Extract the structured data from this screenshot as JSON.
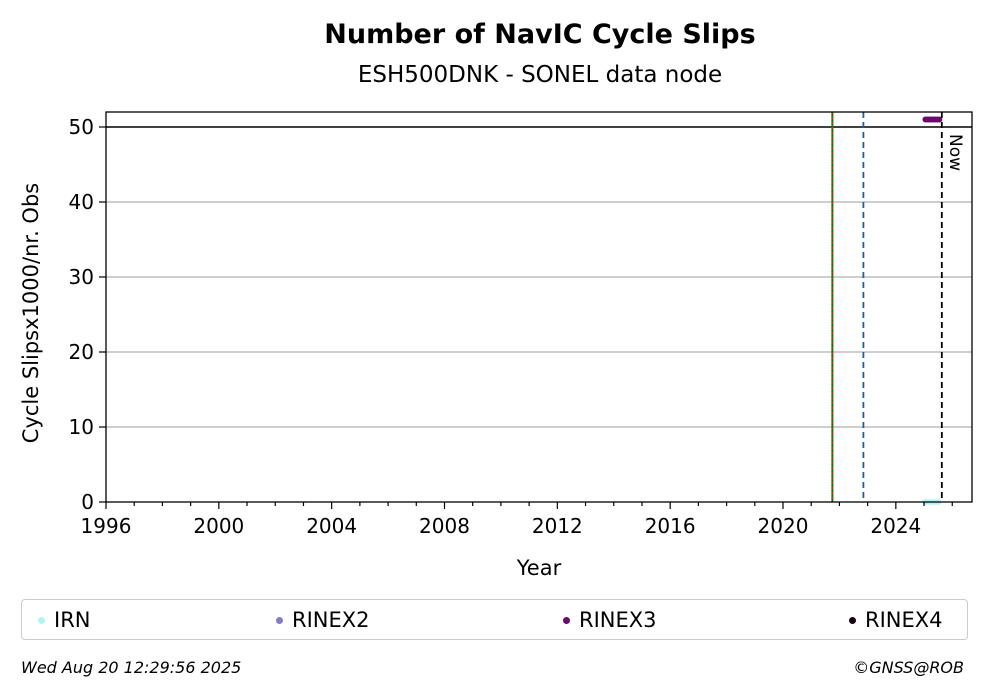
{
  "chart_data": {
    "type": "scatter",
    "title": "Number of NavIC Cycle Slips",
    "subtitle": "ESH500DNK - SONEL data node",
    "xlabel": "Year",
    "ylabel": "Cycle Slipsx1000/nr. Obs",
    "xlim": [
      1996.0,
      2026.7
    ],
    "ylim": [
      0,
      52
    ],
    "xticks": [
      1996,
      2000,
      2004,
      2008,
      2012,
      2016,
      2020,
      2024
    ],
    "yticks": [
      0,
      10,
      20,
      30,
      40,
      50
    ],
    "grid": "horizontal",
    "hline": {
      "y": 50,
      "color": "#000000"
    },
    "vlines": [
      {
        "x": 2021.75,
        "color": "#008000",
        "style": "solid"
      },
      {
        "x": 2021.75,
        "color": "#d62728",
        "style": "dotted"
      },
      {
        "x": 2022.85,
        "color": "#1f5f9f",
        "style": "dashed"
      },
      {
        "x": 2025.63,
        "color": "#000000",
        "style": "dashed",
        "label": "Now"
      }
    ],
    "series": [
      {
        "name": "IRN",
        "color": "#b3f5f7",
        "points": [
          [
            2025.05,
            0
          ],
          [
            2025.2,
            0
          ],
          [
            2025.35,
            0
          ],
          [
            2025.5,
            0
          ]
        ]
      },
      {
        "name": "RINEX2",
        "color": "#8080c0",
        "points": []
      },
      {
        "name": "RINEX3",
        "color": "#6b0a6b",
        "points": [
          [
            2025.05,
            51
          ],
          [
            2025.12,
            51
          ],
          [
            2025.19,
            51
          ],
          [
            2025.26,
            51
          ],
          [
            2025.33,
            51
          ],
          [
            2025.4,
            51
          ],
          [
            2025.47,
            51
          ],
          [
            2025.54,
            51
          ]
        ]
      },
      {
        "name": "RINEX4",
        "color": "#1a0014",
        "points": []
      }
    ]
  },
  "footer": {
    "timestamp": "Wed Aug 20 12:29:56 2025",
    "credit": "©GNSS@ROB"
  }
}
